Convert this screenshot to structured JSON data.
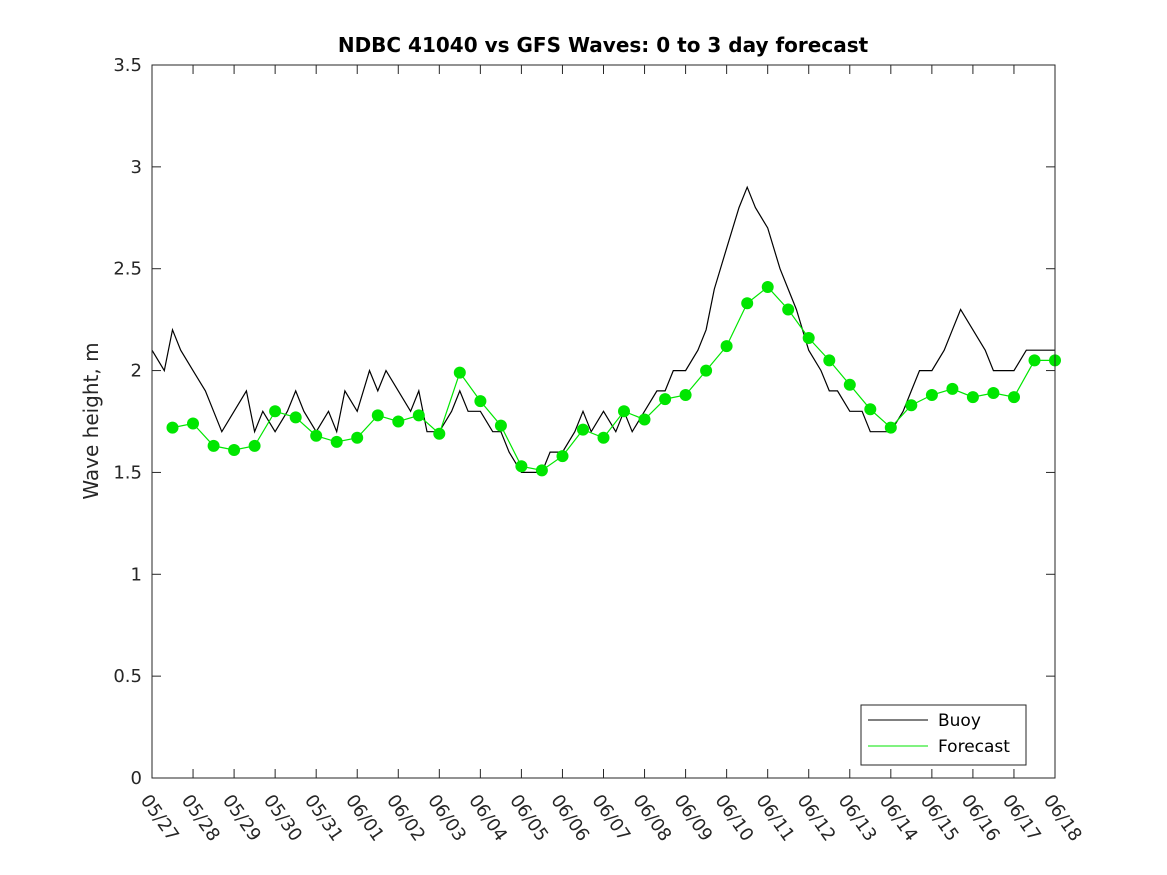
{
  "chart_data": {
    "type": "line",
    "title": "NDBC 41040 vs GFS Waves: 0 to 3 day forecast",
    "xlabel": "",
    "ylabel": "Wave height, m",
    "ylim": [
      0,
      3.5
    ],
    "xlim": [
      "05/27",
      "06/18"
    ],
    "yticks": [
      "0",
      "0.5",
      "1",
      "1.5",
      "2",
      "2.5",
      "3",
      "3.5"
    ],
    "xticks": [
      "05/27",
      "05/28",
      "05/29",
      "05/30",
      "05/31",
      "06/01",
      "06/02",
      "06/03",
      "06/04",
      "06/05",
      "06/06",
      "06/07",
      "06/08",
      "06/09",
      "06/10",
      "06/11",
      "06/12",
      "06/13",
      "06/14",
      "06/15",
      "06/16",
      "06/17",
      "06/18"
    ],
    "grid": false,
    "legend": {
      "position": "bottom-right",
      "entries": [
        "Buoy",
        "Forecast"
      ]
    },
    "colors": {
      "buoy": "#000000",
      "forecast": "#00e600",
      "axes": "#262626"
    },
    "series": [
      {
        "name": "Buoy",
        "x_days": [
          0.0,
          0.3,
          0.5,
          0.7,
          1.0,
          1.3,
          1.5,
          1.7,
          2.0,
          2.3,
          2.5,
          2.7,
          3.0,
          3.3,
          3.5,
          3.7,
          4.0,
          4.3,
          4.5,
          4.7,
          5.0,
          5.3,
          5.5,
          5.7,
          6.0,
          6.3,
          6.5,
          6.7,
          7.0,
          7.3,
          7.5,
          7.7,
          8.0,
          8.3,
          8.5,
          8.7,
          9.0,
          9.3,
          9.5,
          9.7,
          10.0,
          10.3,
          10.5,
          10.7,
          11.0,
          11.3,
          11.5,
          11.7,
          12.0,
          12.3,
          12.5,
          12.7,
          13.0,
          13.3,
          13.5,
          13.7,
          14.0,
          14.3,
          14.5,
          14.7,
          15.0,
          15.3,
          15.5,
          15.7,
          16.0,
          16.3,
          16.5,
          16.7,
          17.0,
          17.3,
          17.5,
          17.7,
          18.0,
          18.3,
          18.5,
          18.7,
          19.0,
          19.3,
          19.5,
          19.7,
          20.0,
          20.3,
          20.5,
          20.7,
          21.0,
          21.3,
          21.5,
          21.7,
          22.0
        ],
        "values": [
          2.1,
          2.0,
          2.2,
          2.1,
          2.0,
          1.9,
          1.8,
          1.7,
          1.8,
          1.9,
          1.7,
          1.8,
          1.7,
          1.8,
          1.9,
          1.8,
          1.7,
          1.8,
          1.7,
          1.9,
          1.8,
          2.0,
          1.9,
          2.0,
          1.9,
          1.8,
          1.9,
          1.7,
          1.7,
          1.8,
          1.9,
          1.8,
          1.8,
          1.7,
          1.7,
          1.6,
          1.5,
          1.5,
          1.5,
          1.6,
          1.6,
          1.7,
          1.8,
          1.7,
          1.8,
          1.7,
          1.8,
          1.7,
          1.8,
          1.9,
          1.9,
          2.0,
          2.0,
          2.1,
          2.2,
          2.4,
          2.6,
          2.8,
          2.9,
          2.8,
          2.7,
          2.5,
          2.4,
          2.3,
          2.1,
          2.0,
          1.9,
          1.9,
          1.8,
          1.8,
          1.7,
          1.7,
          1.7,
          1.8,
          1.9,
          2.0,
          2.0,
          2.1,
          2.2,
          2.3,
          2.2,
          2.1,
          2.0,
          2.0,
          2.0,
          2.1,
          2.1,
          2.1,
          2.1
        ]
      },
      {
        "name": "Forecast",
        "x_days": [
          0.5,
          1.0,
          1.5,
          2.0,
          2.5,
          3.0,
          3.5,
          4.0,
          4.5,
          5.0,
          5.5,
          6.0,
          6.5,
          7.0,
          7.5,
          8.0,
          8.5,
          9.0,
          9.5,
          10.0,
          10.5,
          11.0,
          11.5,
          12.0,
          12.5,
          13.0,
          13.5,
          14.0,
          14.5,
          15.0,
          15.5,
          16.0,
          16.5,
          17.0,
          17.5,
          18.0,
          18.5,
          19.0,
          19.5,
          20.0,
          20.5,
          21.0,
          21.5,
          22.0
        ],
        "values": [
          1.72,
          1.74,
          1.63,
          1.61,
          1.63,
          1.8,
          1.77,
          1.68,
          1.65,
          1.67,
          1.78,
          1.75,
          1.78,
          1.69,
          1.99,
          1.85,
          1.73,
          1.53,
          1.51,
          1.58,
          1.71,
          1.67,
          1.8,
          1.76,
          1.86,
          1.88,
          2.0,
          2.12,
          2.33,
          2.41,
          2.3,
          2.16,
          2.05,
          1.93,
          1.81,
          1.72,
          1.83,
          1.88,
          1.91,
          1.87,
          1.89,
          1.87,
          2.05,
          2.05
        ]
      }
    ]
  }
}
